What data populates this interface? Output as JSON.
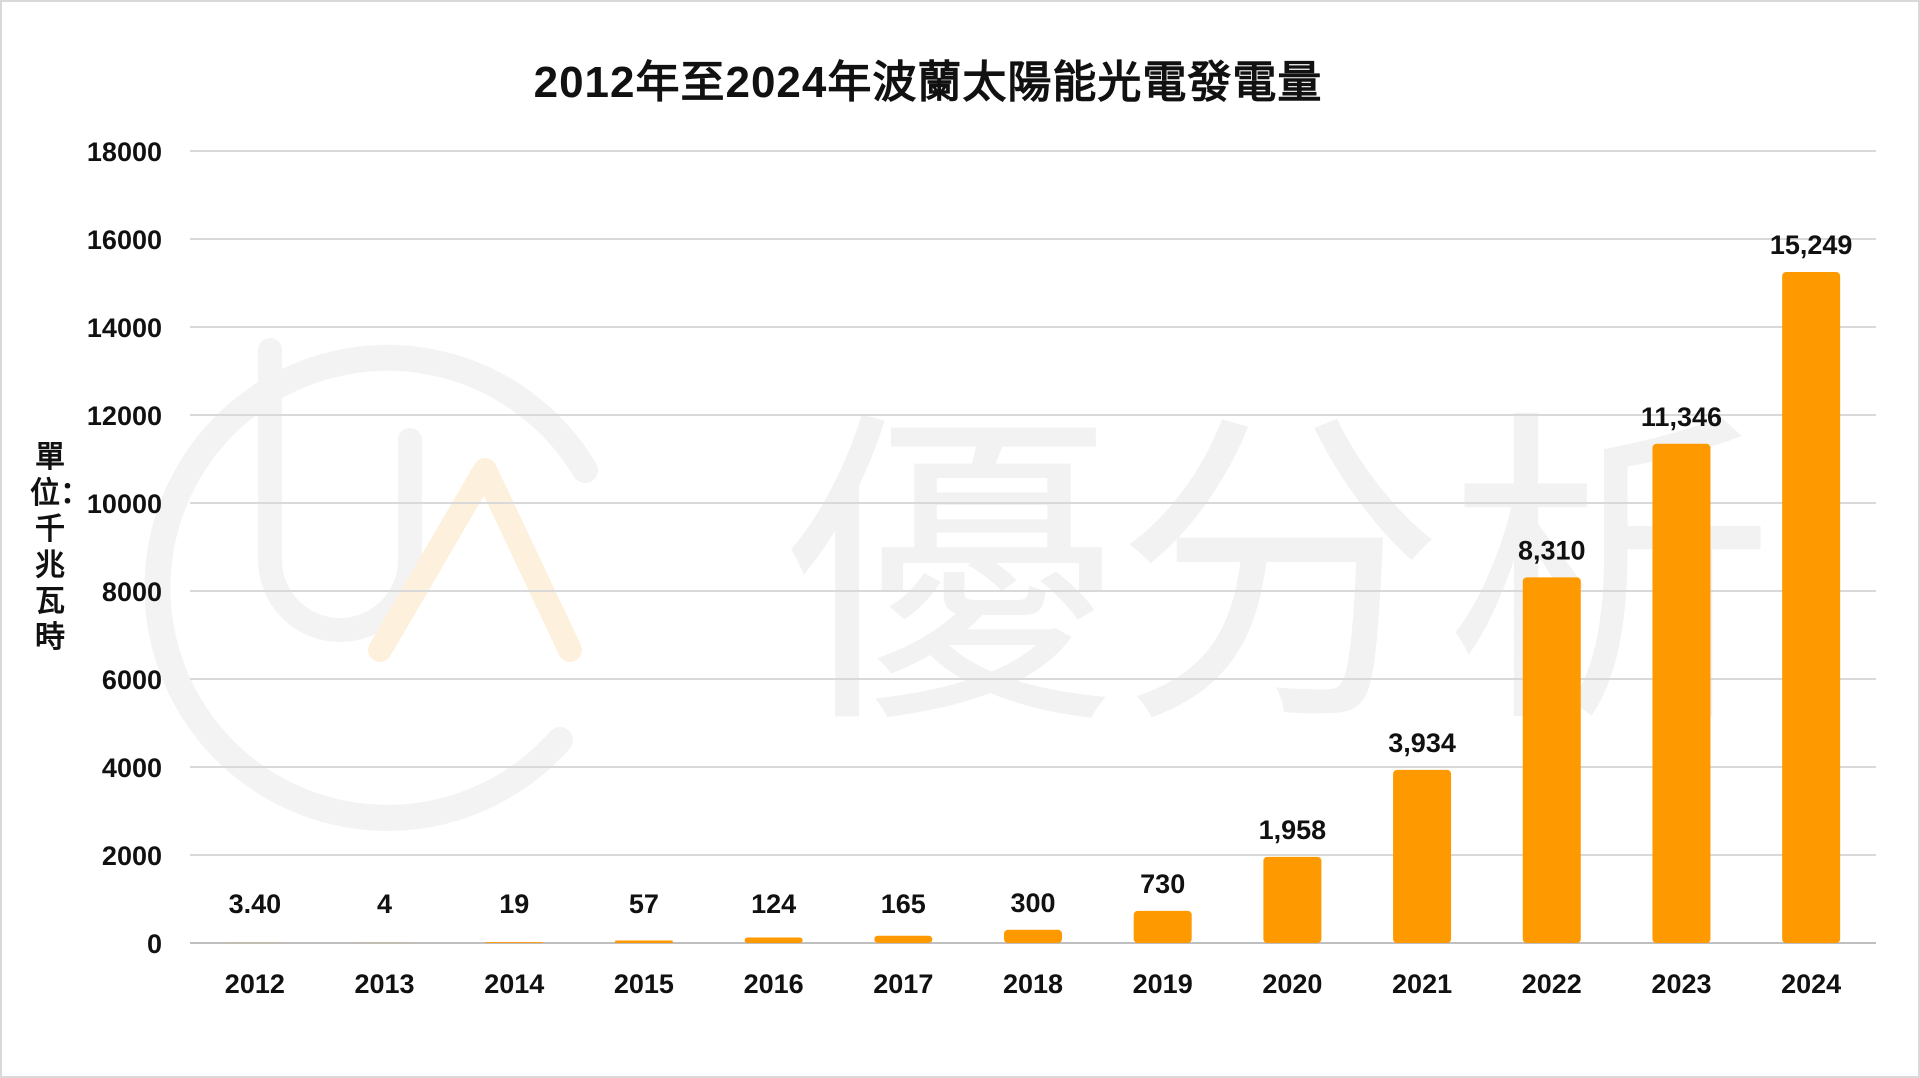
{
  "chart_data": {
    "type": "bar",
    "title": "2012年至2024年波蘭太陽能光電發電量",
    "ylabel": "單位：千兆瓦時",
    "xlabel": "",
    "categories": [
      "2012",
      "2013",
      "2014",
      "2015",
      "2016",
      "2017",
      "2018",
      "2019",
      "2020",
      "2021",
      "2022",
      "2023",
      "2024"
    ],
    "values": [
      3.4,
      4,
      19,
      57,
      124,
      165,
      300,
      730,
      1958,
      3934,
      8310,
      11346,
      15249
    ],
    "data_labels": [
      "3.40",
      "4",
      "19",
      "57",
      "124",
      "165",
      "300",
      "730",
      "1,958",
      "3,934",
      "8,310",
      "11,346",
      "15,249"
    ],
    "ylim": [
      0,
      18000
    ],
    "yticks": [
      0,
      2000,
      4000,
      6000,
      8000,
      10000,
      12000,
      14000,
      16000,
      18000
    ],
    "grid": true,
    "bar_color": "#FF9900"
  },
  "watermark": {
    "text": "優分析",
    "logo_text": "UA"
  }
}
